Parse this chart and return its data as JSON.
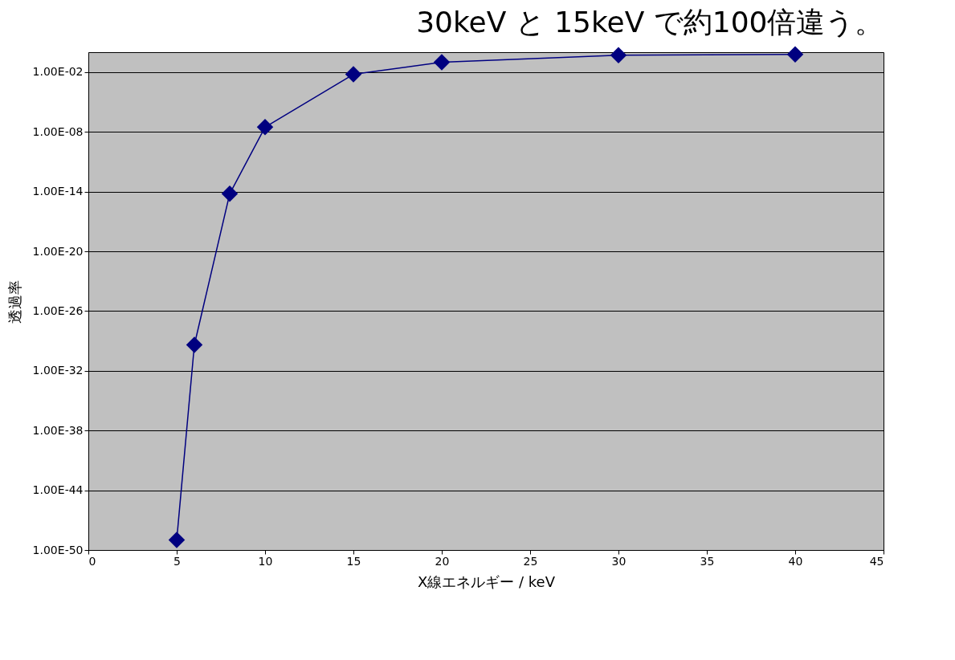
{
  "chart_data": {
    "type": "line",
    "title": "30keV と 15keV で約100倍違う。",
    "xlabel": "X線エネルギー / keV",
    "ylabel": "透過率",
    "x": [
      5,
      6,
      8,
      10,
      15,
      20,
      30,
      40
    ],
    "series": [
      {
        "color": "#000080",
        "values": [
          1e-49,
          4e-30,
          6e-15,
          3e-08,
          0.006,
          0.1,
          0.5,
          0.6
        ]
      }
    ],
    "log": "y",
    "xlim": [
      0,
      45
    ],
    "xticks": [
      0,
      5,
      10,
      15,
      20,
      25,
      30,
      35,
      40,
      45
    ],
    "ylim": [
      1e-50,
      1
    ],
    "yticks": [
      {
        "value": 1e-50,
        "label": "1.00E-50"
      },
      {
        "value": 1e-44,
        "label": "1.00E-44"
      },
      {
        "value": 1e-38,
        "label": "1.00E-38"
      },
      {
        "value": 1e-32,
        "label": "1.00E-32"
      },
      {
        "value": 1e-26,
        "label": "1.00E-26"
      },
      {
        "value": 1e-20,
        "label": "1.00E-20"
      },
      {
        "value": 1e-14,
        "label": "1.00E-14"
      },
      {
        "value": 1e-08,
        "label": "1.00E-08"
      },
      {
        "value": 0.01,
        "label": "1.00E-02"
      }
    ],
    "grid": "y",
    "marker": "diamond",
    "line_style": "solid"
  }
}
